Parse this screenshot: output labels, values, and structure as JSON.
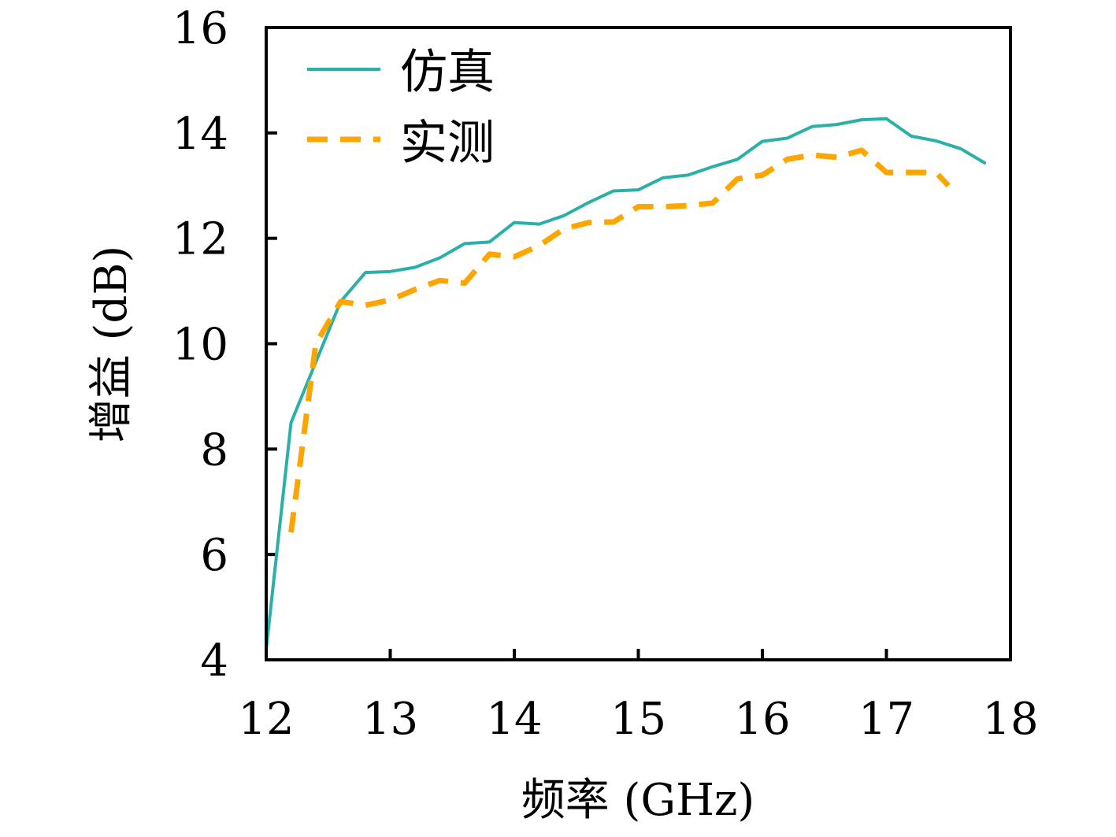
{
  "chart_data": {
    "type": "line",
    "title": "",
    "xlabel": "频率 (GHz)",
    "ylabel": "增益 (dB)",
    "xlim": [
      12,
      18
    ],
    "ylim": [
      4,
      16
    ],
    "xticks": [
      "12",
      "13",
      "14",
      "15",
      "16",
      "17",
      "18"
    ],
    "yticks": [
      "4",
      "6",
      "8",
      "10",
      "12",
      "14",
      "16"
    ],
    "grid": false,
    "legend_position": "top-left",
    "series": [
      {
        "name": "仿真",
        "color": "#2ab0a6",
        "style": "solid",
        "x": [
          12.0,
          12.2,
          12.4,
          12.6,
          12.8,
          13.0,
          13.2,
          13.4,
          13.6,
          13.8,
          14.0,
          14.2,
          14.4,
          14.6,
          14.8,
          15.0,
          15.2,
          15.4,
          15.6,
          15.8,
          16.0,
          16.2,
          16.4,
          16.6,
          16.8,
          17.0,
          17.2,
          17.4,
          17.6,
          17.8
        ],
        "y": [
          4.2,
          8.5,
          9.65,
          10.8,
          11.35,
          11.37,
          11.45,
          11.63,
          11.9,
          11.93,
          12.3,
          12.27,
          12.43,
          12.68,
          12.9,
          12.92,
          13.15,
          13.2,
          13.36,
          13.5,
          13.84,
          13.9,
          14.12,
          14.16,
          14.25,
          14.27,
          13.94,
          13.85,
          13.7,
          13.42
        ]
      },
      {
        "name": "实测",
        "color": "#ffa500",
        "style": "dashed",
        "x": [
          12.2,
          12.4,
          12.6,
          12.8,
          13.0,
          13.2,
          13.4,
          13.6,
          13.8,
          14.0,
          14.2,
          14.4,
          14.6,
          14.8,
          15.0,
          15.2,
          15.4,
          15.6,
          15.8,
          16.0,
          16.2,
          16.4,
          16.6,
          16.8,
          17.0,
          17.2,
          17.4,
          17.5
        ],
        "y": [
          6.42,
          10.0,
          10.8,
          10.73,
          10.83,
          11.03,
          11.2,
          11.15,
          11.7,
          11.65,
          11.86,
          12.18,
          12.3,
          12.31,
          12.6,
          12.6,
          12.62,
          12.67,
          13.13,
          13.2,
          13.5,
          13.58,
          13.54,
          13.67,
          13.25,
          13.25,
          13.25,
          13.0
        ]
      }
    ]
  }
}
